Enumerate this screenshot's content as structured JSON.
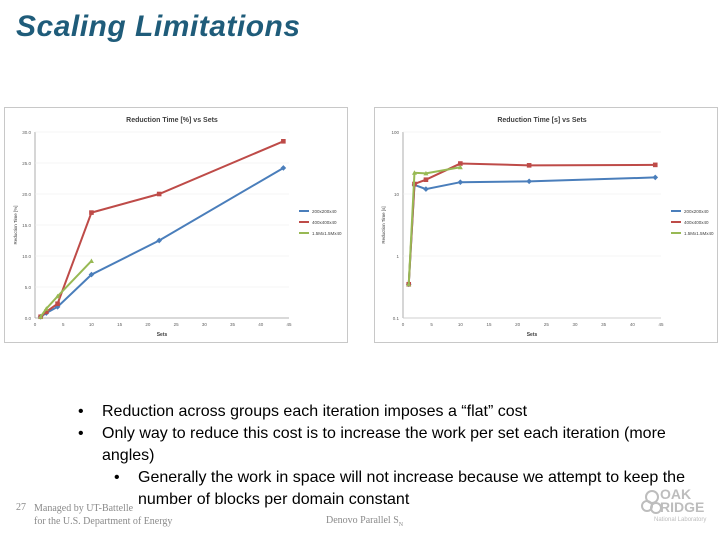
{
  "slide": {
    "title": "Scaling Limitations",
    "page_number": "27",
    "managed_by_line1": "Managed by UT-Battelle",
    "managed_by_line2": "for the U.S. Department of Energy",
    "footer_center": "Denovo Parallel S",
    "footer_center_sub": "N",
    "logo_line1": "OAK",
    "logo_line2": "RIDGE",
    "logo_sub": "National Laboratory"
  },
  "bullets": [
    {
      "level": 1,
      "text": "Reduction across groups each iteration imposes a “flat” cost"
    },
    {
      "level": 1,
      "text": "Only way to reduce this cost is to increase the work per set each iteration (more angles)"
    },
    {
      "level": 2,
      "text": "Generally the work in space will not increase because we attempt to keep the number of blocks per domain constant"
    }
  ],
  "colors": {
    "title": "#1f5c7a",
    "series_blue": "#4a7ebb",
    "series_red": "#be4b48",
    "series_green": "#98b954"
  },
  "chart_data": [
    {
      "type": "line",
      "title": "Reduction Time [%] vs Sets",
      "xlabel": "Sets",
      "ylabel": "Reduction Time [%]",
      "x_ticks": [
        "0",
        "5",
        "10",
        "15",
        "20",
        "25",
        "30",
        "35",
        "40",
        "45"
      ],
      "y_ticks": [
        "0.0",
        "5.0",
        "10.0",
        "15.0",
        "20.0",
        "25.0",
        "30.0"
      ],
      "xlim": [
        0,
        45
      ],
      "ylim": [
        0,
        30
      ],
      "legend_position": "right",
      "series": [
        {
          "name": "200x200x40",
          "x": [
            1,
            2,
            4,
            10,
            22,
            44
          ],
          "values": [
            0.2,
            0.8,
            1.8,
            7.0,
            12.5,
            24.2
          ]
        },
        {
          "name": "400x400x40",
          "x": [
            1,
            2,
            4,
            10,
            22,
            44
          ],
          "values": [
            0.2,
            1.0,
            2.3,
            17.0,
            20.0,
            28.5
          ]
        },
        {
          "name": "1.5Mx1.5Mx40",
          "x": [
            1,
            2,
            4,
            10
          ],
          "values": [
            0.2,
            1.5,
            3.5,
            9.2
          ]
        }
      ]
    },
    {
      "type": "line",
      "title": "Reduction Time [s] vs Sets",
      "xlabel": "Sets",
      "ylabel": "Reduction Time [s]",
      "y_scale": "log",
      "x_ticks": [
        "0",
        "5",
        "10",
        "15",
        "20",
        "25",
        "30",
        "35",
        "40",
        "45"
      ],
      "y_ticks": [
        "0.1",
        "1",
        "10",
        "100"
      ],
      "xlim": [
        0,
        45
      ],
      "ylim": [
        0.1,
        100
      ],
      "legend_position": "right",
      "series": [
        {
          "name": "200x200x40",
          "x": [
            1,
            2,
            4,
            10,
            22,
            44
          ],
          "values": [
            0.35,
            14,
            12,
            15.5,
            16,
            18.5
          ]
        },
        {
          "name": "400x400x40",
          "x": [
            1,
            2,
            4,
            10,
            22,
            44
          ],
          "values": [
            0.35,
            14.5,
            17,
            31,
            29,
            29.5
          ]
        },
        {
          "name": "1.5Mx1.5Mx40",
          "x": [
            1,
            2,
            4,
            10
          ],
          "values": [
            0.35,
            22,
            21.5,
            27
          ]
        }
      ]
    }
  ]
}
